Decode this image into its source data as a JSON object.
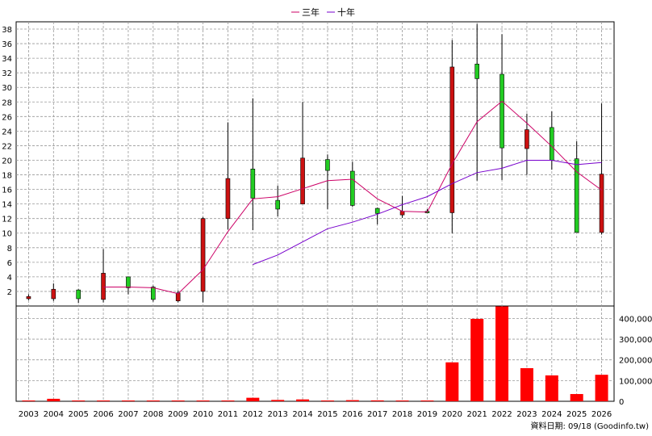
{
  "legend": {
    "series1": "三年",
    "series2": "十年"
  },
  "source_note": "資料日期: 09/18  (Goodinfo.tw)",
  "colors": {
    "up": "#22cc22",
    "down": "#cc1111",
    "ma3": "#cc0066",
    "ma10": "#7700cc",
    "volume": "#ff0000"
  },
  "chart_data": {
    "type": "candlestick-with-volume",
    "categories": [
      "2003",
      "2004",
      "2005",
      "2006",
      "2007",
      "2008",
      "2009",
      "2010",
      "2011",
      "2012",
      "2013",
      "2014",
      "2015",
      "2016",
      "2017",
      "2018",
      "2019",
      "2020",
      "2021",
      "2022",
      "2023",
      "2024",
      "2025",
      "2026"
    ],
    "price_axis": {
      "ticks": [
        2,
        4,
        6,
        8,
        10,
        12,
        14,
        16,
        18,
        20,
        22,
        24,
        26,
        28,
        30,
        32,
        34,
        36,
        38
      ],
      "ylim": [
        0,
        39
      ]
    },
    "volume_axis": {
      "ticks": [
        "0",
        "100,000",
        "200,000",
        "300,000",
        "400,000"
      ],
      "ylim": [
        0,
        460000
      ]
    },
    "candles": [
      {
        "year": "2003",
        "open": 1.3,
        "close": 1.0,
        "high": 1.6,
        "low": 0.8
      },
      {
        "year": "2004",
        "open": 2.3,
        "close": 1.0,
        "high": 3.1,
        "low": 0.7
      },
      {
        "year": "2005",
        "open": 1.0,
        "close": 2.2,
        "high": 2.3,
        "low": 0.4
      },
      {
        "year": "2006",
        "open": 4.5,
        "close": 0.9,
        "high": 7.8,
        "low": 0.5
      },
      {
        "year": "2007",
        "open": 2.5,
        "close": 4.0,
        "high": 4.0,
        "low": 1.6
      },
      {
        "year": "2008",
        "open": 0.9,
        "close": 2.6,
        "high": 2.8,
        "low": 0.6
      },
      {
        "year": "2009",
        "open": 1.8,
        "close": 0.7,
        "high": 2.1,
        "low": 0.5
      },
      {
        "year": "2010",
        "open": 12.0,
        "close": 2.0,
        "high": 12.2,
        "low": 0.5
      },
      {
        "year": "2011",
        "open": 17.5,
        "close": 12.0,
        "high": 25.2,
        "low": 10.5
      },
      {
        "year": "2012",
        "open": 14.8,
        "close": 18.8,
        "high": 28.5,
        "low": 10.4
      },
      {
        "year": "2013",
        "open": 13.3,
        "close": 14.5,
        "high": 16.5,
        "low": 12.3
      },
      {
        "year": "2014",
        "open": 20.3,
        "close": 14.0,
        "high": 28.0,
        "low": 14.0
      },
      {
        "year": "2015",
        "open": 18.6,
        "close": 20.1,
        "high": 20.8,
        "low": 13.3
      },
      {
        "year": "2016",
        "open": 13.8,
        "close": 18.5,
        "high": 19.8,
        "low": 13.6
      },
      {
        "year": "2017",
        "open": 12.7,
        "close": 13.4,
        "high": 13.5,
        "low": 11.2
      },
      {
        "year": "2018",
        "open": 13.0,
        "close": 12.5,
        "high": 15.1,
        "low": 12.1
      },
      {
        "year": "2019",
        "open": 13.0,
        "close": 13.0,
        "high": 13.3,
        "low": 12.8
      },
      {
        "year": "2020",
        "open": 32.8,
        "close": 12.8,
        "high": 36.5,
        "low": 10.0
      },
      {
        "year": "2021",
        "open": 31.2,
        "close": 33.2,
        "high": 38.7,
        "low": 17.2
      },
      {
        "year": "2022",
        "open": 21.7,
        "close": 31.8,
        "high": 37.3,
        "low": 17.3
      },
      {
        "year": "2023",
        "open": 24.2,
        "close": 21.6,
        "high": 26.4,
        "low": 18.0
      },
      {
        "year": "2024",
        "open": 20.0,
        "close": 24.5,
        "high": 26.7,
        "low": 18.7
      },
      {
        "year": "2025",
        "open": 10.1,
        "close": 20.2,
        "high": 22.6,
        "low": 10.1
      },
      {
        "year": "2026",
        "open": 18.1,
        "close": 10.1,
        "high": 27.8,
        "low": 9.8
      }
    ],
    "series": [
      {
        "name": "三年",
        "values": [
          null,
          null,
          null,
          2.6,
          2.6,
          2.5,
          1.7,
          5.0,
          10.2,
          14.7,
          15.0,
          16.1,
          17.2,
          17.4,
          14.7,
          13.0,
          12.9,
          19.5,
          25.3,
          28.1,
          25.1,
          21.9,
          18.4,
          15.9
        ]
      },
      {
        "name": "十年",
        "values": [
          null,
          null,
          null,
          null,
          null,
          null,
          null,
          null,
          null,
          5.7,
          7.0,
          8.8,
          10.6,
          11.5,
          12.6,
          13.9,
          15.0,
          16.8,
          18.3,
          18.9,
          20.0,
          20.0,
          19.4,
          19.7
        ]
      }
    ],
    "volume": [
      800,
      12000,
      600,
      1000,
      200,
      200,
      200,
      200,
      500,
      17000,
      6500,
      9000,
      600,
      5500,
      4500,
      700,
      500,
      188000,
      398000,
      458000,
      160000,
      125000,
      35000,
      128000
    ]
  }
}
